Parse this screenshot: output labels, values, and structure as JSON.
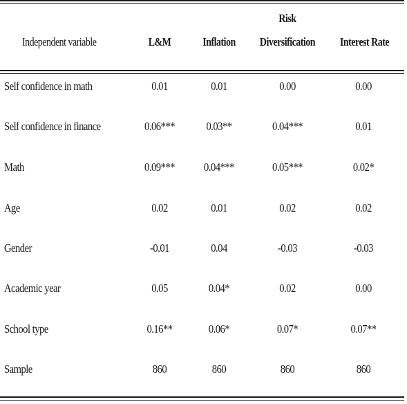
{
  "header": {
    "independent_variable": "Independent variable",
    "col1": "L&M",
    "col2": "Inflation",
    "col3_line1": "Risk",
    "col3_line2": "Diversification",
    "col4": "Interest Rate"
  },
  "rows": [
    {
      "label": "Self confidence in math",
      "values": [
        "0.01",
        "0.01",
        "0.00",
        "0.00"
      ]
    },
    {
      "label": "Self confidence in finance",
      "values": [
        "0.06***",
        "0.03**",
        "0.04***",
        "0.01"
      ]
    },
    {
      "label": "Math",
      "values": [
        "0.09***",
        "0.04***",
        "0.05***",
        "0.02*"
      ]
    },
    {
      "label": "Age",
      "values": [
        "0.02",
        "0.01",
        "0.02",
        "0.02"
      ]
    },
    {
      "label": "Gender",
      "values": [
        "-0.01",
        "0.04",
        "-0.03",
        "-0.03"
      ]
    },
    {
      "label": "Academic year",
      "values": [
        "0.05",
        "0.04*",
        "0.02",
        "0.00"
      ]
    },
    {
      "label": "School type",
      "values": [
        "0.16**",
        "0.06*",
        "0.07*",
        "0.07**"
      ]
    },
    {
      "label": "Sample",
      "values": [
        "860",
        "860",
        "860",
        "860"
      ]
    }
  ]
}
